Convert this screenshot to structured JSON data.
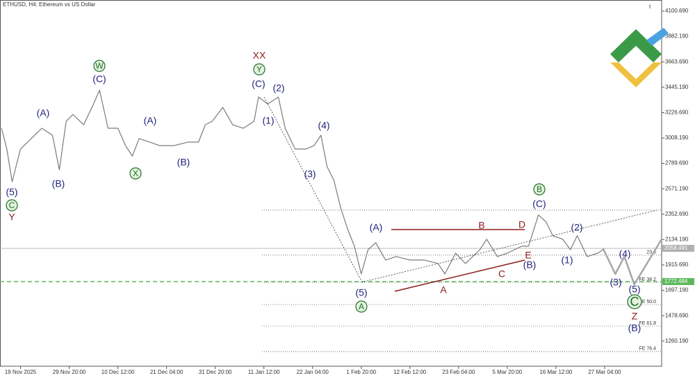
{
  "chart_data": {
    "type": "line",
    "title": "ETHUSD, H4:  Ethereum vs US Dollar",
    "x": [
      2,
      9,
      16,
      27,
      41,
      55,
      69,
      78,
      87,
      96,
      110,
      123,
      131,
      142,
      155,
      165,
      174,
      183,
      197,
      210,
      229,
      247,
      261,
      270,
      279,
      293,
      306,
      320,
      334,
      340,
      352,
      366,
      375,
      388,
      402,
      413,
      422,
      430,
      439,
      448,
      457,
      466,
      475,
      484,
      494,
      507,
      521,
      539,
      558,
      576,
      585,
      599,
      612,
      631,
      640,
      654,
      667,
      686,
      695,
      708,
      718,
      727,
      740,
      750,
      759,
      772,
      786,
      793
    ],
    "series": [
      {
        "color": "#7a7a7a",
        "values": [
          3092,
          2913,
          2632,
          2913,
          3003,
          3092,
          3032,
          2734,
          3152,
          3211,
          3122,
          3301,
          3420,
          3092,
          3092,
          2943,
          2853,
          3003,
          2973,
          2943,
          2943,
          2973,
          2973,
          3122,
          3152,
          3271,
          3122,
          3092,
          3152,
          3361,
          3301,
          3361,
          3092,
          2913,
          2913,
          2943,
          3032,
          2764,
          2644,
          2406,
          2226,
          2077,
          1838,
          2047,
          2107,
          1958,
          1988,
          1958,
          1958,
          1928,
          1838,
          2017,
          1928,
          2047,
          2137,
          1988,
          2017,
          2077,
          2077,
          2346,
          2286,
          2167,
          2137,
          2047,
          2167,
          1988,
          2017,
          2047
        ]
      },
      {
        "color": "#a6a6a6",
        "x": [
          793,
          809,
          821,
          834,
          870
        ],
        "values": [
          2058,
          1838,
          1988,
          1748,
          2137
        ]
      }
    ],
    "xlim": [
      0,
      870
    ],
    "ylim": [
      1044,
      4196
    ],
    "xticks": [
      {
        "value": 27,
        "label": "19 Nov 2025"
      },
      {
        "value": 91,
        "label": "29 Nov 20:00"
      },
      {
        "value": 155,
        "label": "10 Dec 12:00"
      },
      {
        "value": 219,
        "label": "21 Dec 04:00"
      },
      {
        "value": 283,
        "label": "31 Dec 20:00"
      },
      {
        "value": 347,
        "label": "11 Jan 12:00"
      },
      {
        "value": 411,
        "label": "22 Jan 04:00"
      },
      {
        "value": 475,
        "label": "1 Feb 20:00"
      },
      {
        "value": 539,
        "label": "12 Feb 12:00"
      },
      {
        "value": 603,
        "label": "23 Feb 04:00"
      },
      {
        "value": 667,
        "label": "5 Mar 20:00"
      },
      {
        "value": 731,
        "label": "16 Mar 12:00"
      },
      {
        "value": 795,
        "label": "27 Mar 04:00"
      }
    ],
    "yticks": [
      {
        "value": 4100.69,
        "label": "4100.690"
      },
      {
        "value": 3882.19,
        "label": "3882.190"
      },
      {
        "value": 3663.69,
        "label": "3663.690"
      },
      {
        "value": 3445.19,
        "label": "3445.190"
      },
      {
        "value": 3226.69,
        "label": "3226.690"
      },
      {
        "value": 3008.19,
        "label": "3008.190"
      },
      {
        "value": 2789.69,
        "label": "2789.690"
      },
      {
        "value": 2571.19,
        "label": "2571.190"
      },
      {
        "value": 2352.69,
        "label": "2352.690"
      },
      {
        "value": 2134.19,
        "label": "2134.190"
      },
      {
        "value": 1915.69,
        "label": "1915.690"
      },
      {
        "value": 1697.19,
        "label": "1697.190"
      },
      {
        "value": 1478.69,
        "label": "1478.690"
      },
      {
        "value": 1260.19,
        "label": "1260.190"
      }
    ],
    "price_levels": [
      {
        "value": 2058.491,
        "label": "2058.491",
        "color": "#b0b0b0",
        "dashed": false
      },
      {
        "value": 1772.484,
        "label": "1772.484",
        "color": "#5cb85c",
        "dashed": true
      }
    ],
    "fib_levels": [
      {
        "value": 2387
      },
      {
        "value": 2000,
        "label": "23.6"
      },
      {
        "value": 1766,
        "label": "FE 38.2"
      },
      {
        "value": 1575,
        "label": "FE 50.0"
      },
      {
        "value": 1390,
        "label": "FE 61.8"
      },
      {
        "value": 1170,
        "label": "FE 76.4"
      }
    ],
    "annotations": [
      "(5)",
      "C",
      "Y",
      "(A)",
      "(B)",
      "W",
      "(C)",
      "X",
      "(A)",
      "(B)",
      "XX",
      "Y",
      "(C)",
      "(2)",
      "(1)",
      "(4)",
      "(3)",
      "(A)",
      "(5)",
      "A",
      "B",
      "D",
      "E",
      "(B)",
      "A",
      "C",
      "B",
      "(C)",
      "(2)",
      "(1)",
      "(4)",
      "(3)",
      "(5)",
      "C",
      "Z",
      "(B)"
    ]
  }
}
